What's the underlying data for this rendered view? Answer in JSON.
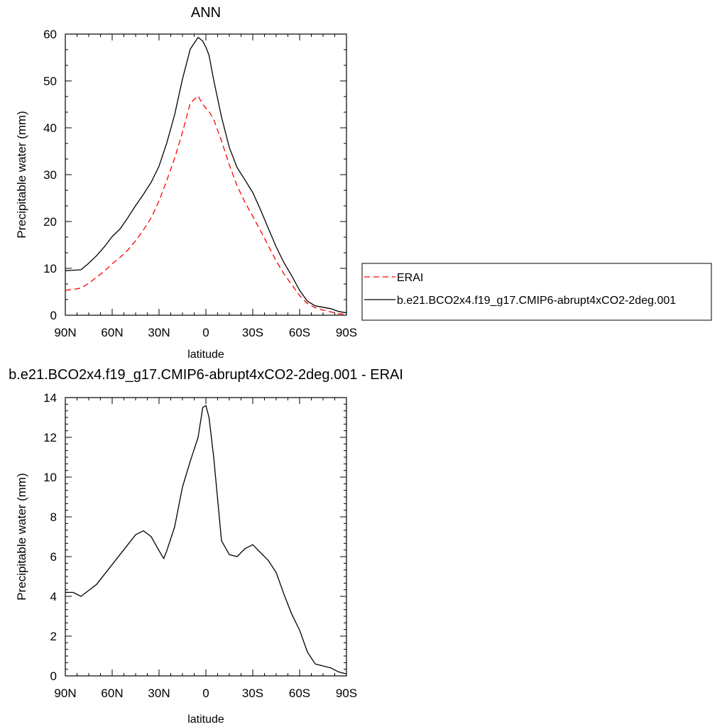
{
  "chart_data": [
    {
      "type": "line",
      "title": "ANN",
      "xlabel": "latitude",
      "ylabel": "Precipitable water (mm)",
      "xlim": [
        90,
        -90
      ],
      "ylim": [
        0,
        60
      ],
      "x_ticks": [
        90,
        60,
        30,
        0,
        -30,
        -60,
        -90
      ],
      "x_tick_labels": [
        "90N",
        "60N",
        "30N",
        "0",
        "30S",
        "60S",
        "90S"
      ],
      "y_ticks": [
        0,
        10,
        20,
        30,
        40,
        50,
        60
      ],
      "y_tick_labels": [
        "0",
        "10",
        "20",
        "30",
        "40",
        "50",
        "60"
      ],
      "legend_position": "right",
      "series": [
        {
          "name": "ERAI",
          "color": "#ff0000",
          "dash": "dashed",
          "x": [
            90,
            85,
            80,
            75,
            70,
            65,
            60,
            55,
            50,
            45,
            40,
            35,
            30,
            25,
            20,
            15,
            10,
            5,
            2,
            0,
            -2,
            -5,
            -10,
            -15,
            -20,
            -25,
            -30,
            -35,
            -40,
            -45,
            -50,
            -55,
            -60,
            -65,
            -70,
            -75,
            -80,
            -85,
            -90
          ],
          "y": [
            5.3,
            5.5,
            5.8,
            6.8,
            8.1,
            9.4,
            11.0,
            12.3,
            13.9,
            15.9,
            18.2,
            20.8,
            24.4,
            28.8,
            33.5,
            39.0,
            45.3,
            46.8,
            45.0,
            44.2,
            43.5,
            41.8,
            37.2,
            32.1,
            27.6,
            24.1,
            21.1,
            18.0,
            14.8,
            11.6,
            8.8,
            6.5,
            4.2,
            2.5,
            1.6,
            1.1,
            0.7,
            0.3,
            0.2
          ]
        },
        {
          "name": "b.e21.BCO2x4.f19_g17.CMIP6-abrupt4xCO2-2deg.001",
          "color": "#000000",
          "dash": "solid",
          "x": [
            90,
            85,
            80,
            75,
            70,
            65,
            60,
            55,
            50,
            45,
            40,
            35,
            30,
            25,
            20,
            15,
            10,
            5,
            2,
            0,
            -2,
            -5,
            -10,
            -15,
            -20,
            -25,
            -30,
            -35,
            -40,
            -45,
            -50,
            -55,
            -60,
            -65,
            -70,
            -75,
            -80,
            -85,
            -90
          ],
          "y": [
            9.5,
            9.6,
            9.7,
            11.1,
            12.7,
            14.6,
            16.8,
            18.4,
            20.8,
            23.4,
            25.8,
            28.4,
            31.8,
            36.8,
            42.8,
            50.4,
            56.8,
            59.3,
            58.5,
            57.2,
            55.5,
            50.2,
            42.3,
            35.8,
            31.5,
            28.9,
            26.2,
            22.5,
            18.5,
            14.6,
            11.2,
            8.4,
            5.3,
            3.0,
            2.0,
            1.7,
            1.4,
            0.8,
            0.5
          ]
        }
      ]
    },
    {
      "type": "line",
      "title": "b.e21.BCO2x4.f19_g17.CMIP6-abrupt4xCO2-2deg.001 - ERAI",
      "xlabel": "latitude",
      "ylabel": "Precipitable water (mm)",
      "xlim": [
        90,
        -90
      ],
      "ylim": [
        0,
        14
      ],
      "x_ticks": [
        90,
        60,
        30,
        0,
        -30,
        -60,
        -90
      ],
      "x_tick_labels": [
        "90N",
        "60N",
        "30N",
        "0",
        "30S",
        "60S",
        "90S"
      ],
      "y_ticks": [
        0,
        2,
        4,
        6,
        8,
        10,
        12,
        14
      ],
      "y_tick_labels": [
        "0",
        "2",
        "4",
        "6",
        "8",
        "10",
        "12",
        "14"
      ],
      "series": [
        {
          "color": "#000000",
          "dash": "solid",
          "x": [
            90,
            85,
            80,
            75,
            70,
            65,
            60,
            55,
            50,
            45,
            40,
            35,
            30,
            27,
            25,
            20,
            15,
            10,
            5,
            2,
            0,
            -2,
            -5,
            -10,
            -15,
            -20,
            -25,
            -30,
            -35,
            -40,
            -45,
            -50,
            -55,
            -60,
            -65,
            -70,
            -75,
            -80,
            -85,
            -90
          ],
          "y": [
            4.2,
            4.2,
            4.0,
            4.3,
            4.6,
            5.1,
            5.6,
            6.1,
            6.6,
            7.1,
            7.3,
            7.0,
            6.3,
            5.9,
            6.3,
            7.5,
            9.5,
            10.8,
            12.0,
            13.5,
            13.6,
            13.0,
            11.0,
            6.8,
            6.1,
            6.0,
            6.4,
            6.6,
            6.2,
            5.8,
            5.2,
            4.1,
            3.1,
            2.3,
            1.2,
            0.6,
            0.5,
            0.4,
            0.2,
            0.1
          ]
        }
      ]
    }
  ]
}
